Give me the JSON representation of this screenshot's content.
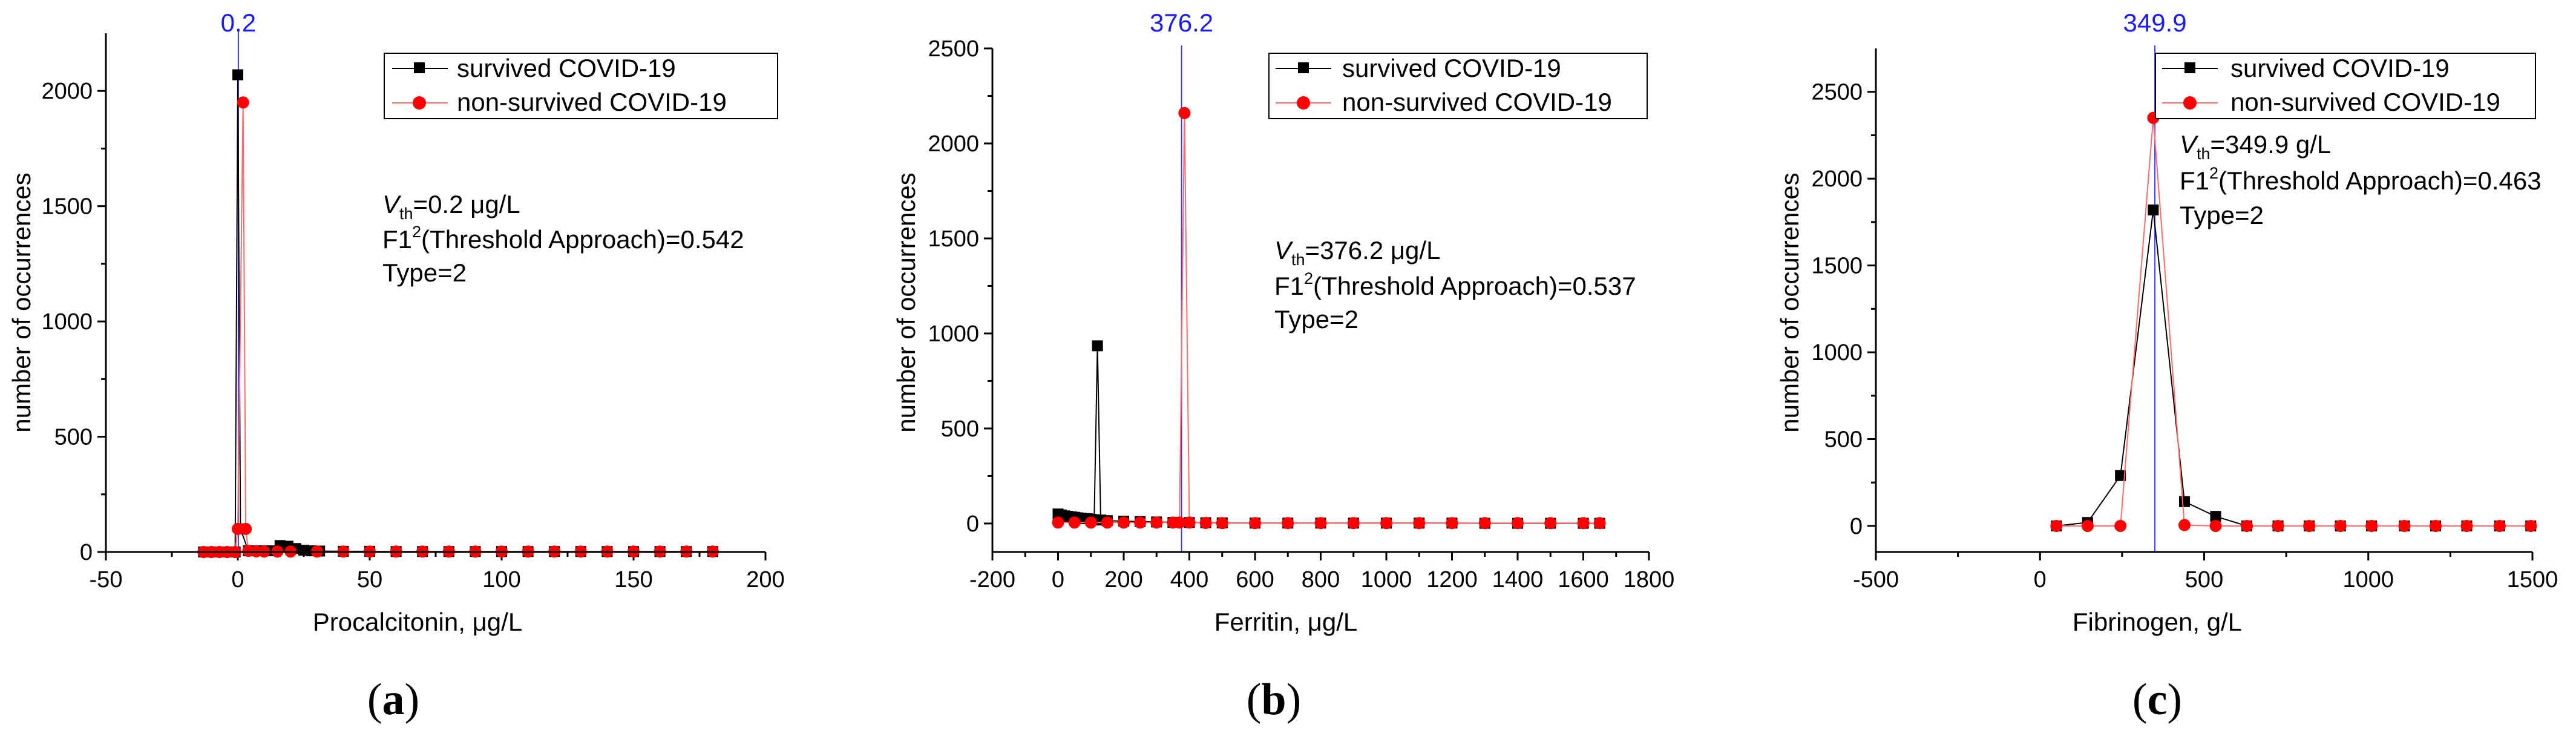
{
  "colors": {
    "survived": "#000000",
    "non_survived": "#ff0000",
    "non_survived_line": "#ff6a6a",
    "threshold": "#3b3bff"
  },
  "legend": {
    "survived": "survived COVID-19",
    "non_survived": "non-survived COVID-19"
  },
  "chart_data": [
    {
      "type": "line",
      "panel_label": "a",
      "xlabel": "Procalcitonin, μg/L",
      "ylabel": "number of occurrences",
      "xlim": [
        -50,
        200
      ],
      "ylim": [
        0,
        2250
      ],
      "xticks": [
        -50,
        0,
        50,
        100,
        150,
        200
      ],
      "yticks": [
        0,
        500,
        1000,
        1500,
        2000
      ],
      "threshold": 0.2,
      "threshold_label": "0.2",
      "annotation": {
        "v_label": "V",
        "v_sub": "th",
        "v_value": "=0.2 μg/L",
        "f1_prefix": "F1",
        "f1_sup": "2",
        "f1_rest": "(Threshold Approach)=0.542",
        "type": "Type=2"
      },
      "series": [
        {
          "name": "survived COVID-19",
          "x": [
            -13,
            -10,
            -7,
            -4,
            -1,
            0,
            1,
            4,
            7,
            10,
            13,
            16,
            19,
            22,
            25,
            28,
            31,
            40,
            50,
            60,
            70,
            80,
            90,
            100,
            110,
            120,
            130,
            140,
            150,
            160,
            170,
            180
          ],
          "y": [
            0,
            0,
            0,
            0,
            0,
            2070,
            100,
            5,
            5,
            5,
            5,
            28,
            25,
            15,
            8,
            5,
            4,
            3,
            3,
            2,
            2,
            2,
            2,
            2,
            2,
            2,
            2,
            2,
            2,
            2,
            2,
            2
          ]
        },
        {
          "name": "non-survived COVID-19",
          "x": [
            -13,
            -10,
            -7,
            -4,
            -1,
            0,
            2,
            3,
            4,
            7,
            10,
            15,
            20,
            30,
            40,
            50,
            60,
            70,
            80,
            90,
            100,
            110,
            120,
            130,
            140,
            150,
            160,
            170,
            180
          ],
          "y": [
            0,
            0,
            0,
            0,
            0,
            100,
            1950,
            100,
            5,
            3,
            2,
            2,
            2,
            2,
            2,
            2,
            2,
            2,
            2,
            2,
            2,
            2,
            2,
            2,
            2,
            2,
            2,
            2,
            2
          ]
        }
      ]
    },
    {
      "type": "line",
      "panel_label": "b",
      "xlabel": "Ferritin, μg/L",
      "ylabel": "number of occurrences",
      "xlim": [
        -200,
        1800
      ],
      "ylim": [
        -150,
        2500
      ],
      "xticks": [
        -200,
        0,
        200,
        400,
        600,
        800,
        1000,
        1200,
        1400,
        1600,
        1800
      ],
      "yticks": [
        0,
        500,
        1000,
        1500,
        2000,
        2500
      ],
      "threshold": 376.2,
      "threshold_label": "376.2",
      "annotation": {
        "v_label": "V",
        "v_sub": "th",
        "v_value": "=376.2 μg/L",
        "f1_prefix": "F1",
        "f1_sup": "2",
        "f1_rest": "(Threshold Approach)=0.537",
        "type": "Type=2"
      },
      "series": [
        {
          "name": "survived COVID-19",
          "x": [
            0,
            10,
            20,
            30,
            40,
            50,
            60,
            70,
            80,
            90,
            100,
            110,
            120,
            130,
            150,
            200,
            250,
            300,
            350,
            400,
            450,
            500,
            600,
            700,
            800,
            900,
            1000,
            1100,
            1200,
            1300,
            1400,
            1500,
            1600,
            1650
          ],
          "y": [
            50,
            45,
            40,
            38,
            35,
            33,
            30,
            28,
            26,
            25,
            22,
            20,
            935,
            18,
            15,
            12,
            10,
            8,
            6,
            5,
            4,
            3,
            2,
            2,
            2,
            2,
            2,
            2,
            2,
            1,
            1,
            1,
            1,
            1
          ]
        },
        {
          "name": "non-survived COVID-19",
          "x": [
            0,
            50,
            100,
            150,
            200,
            250,
            300,
            350,
            370,
            385,
            400,
            450,
            500,
            600,
            700,
            800,
            900,
            1000,
            1100,
            1200,
            1300,
            1400,
            1500,
            1600,
            1650
          ],
          "y": [
            5,
            5,
            5,
            5,
            5,
            5,
            5,
            5,
            5,
            2160,
            5,
            3,
            2,
            2,
            2,
            2,
            2,
            2,
            2,
            2,
            2,
            2,
            2,
            2,
            2
          ]
        }
      ]
    },
    {
      "type": "line",
      "panel_label": "c",
      "xlabel": "Fibrinogen, g/L",
      "ylabel": "number of occurrences",
      "xlim": [
        -500,
        1500
      ],
      "ylim": [
        -150,
        2750
      ],
      "xticks": [
        -500,
        0,
        500,
        1000,
        1500
      ],
      "yticks": [
        0,
        500,
        1000,
        1500,
        2000,
        2500
      ],
      "threshold": 349.9,
      "threshold_label": "349.9",
      "annotation": {
        "v_label": "V",
        "v_sub": "th",
        "v_value": "=349.9 g/L",
        "f1_prefix": "F1",
        "f1_sup": "2",
        "f1_rest": "(Threshold Approach)=0.463",
        "type": "Type=2"
      },
      "series": [
        {
          "name": "survived COVID-19",
          "x": [
            50,
            145,
            245,
            345,
            440,
            535,
            630,
            725,
            820,
            915,
            1010,
            1110,
            1205,
            1300,
            1400,
            1495
          ],
          "y": [
            0,
            20,
            290,
            1820,
            140,
            55,
            0,
            0,
            0,
            0,
            0,
            0,
            0,
            0,
            0,
            0
          ]
        },
        {
          "name": "non-survived COVID-19",
          "x": [
            50,
            145,
            245,
            345,
            440,
            535,
            630,
            725,
            820,
            915,
            1010,
            1110,
            1205,
            1300,
            1400,
            1495
          ],
          "y": [
            0,
            0,
            0,
            2350,
            5,
            0,
            0,
            0,
            0,
            0,
            0,
            0,
            0,
            0,
            0,
            0
          ]
        }
      ]
    }
  ]
}
